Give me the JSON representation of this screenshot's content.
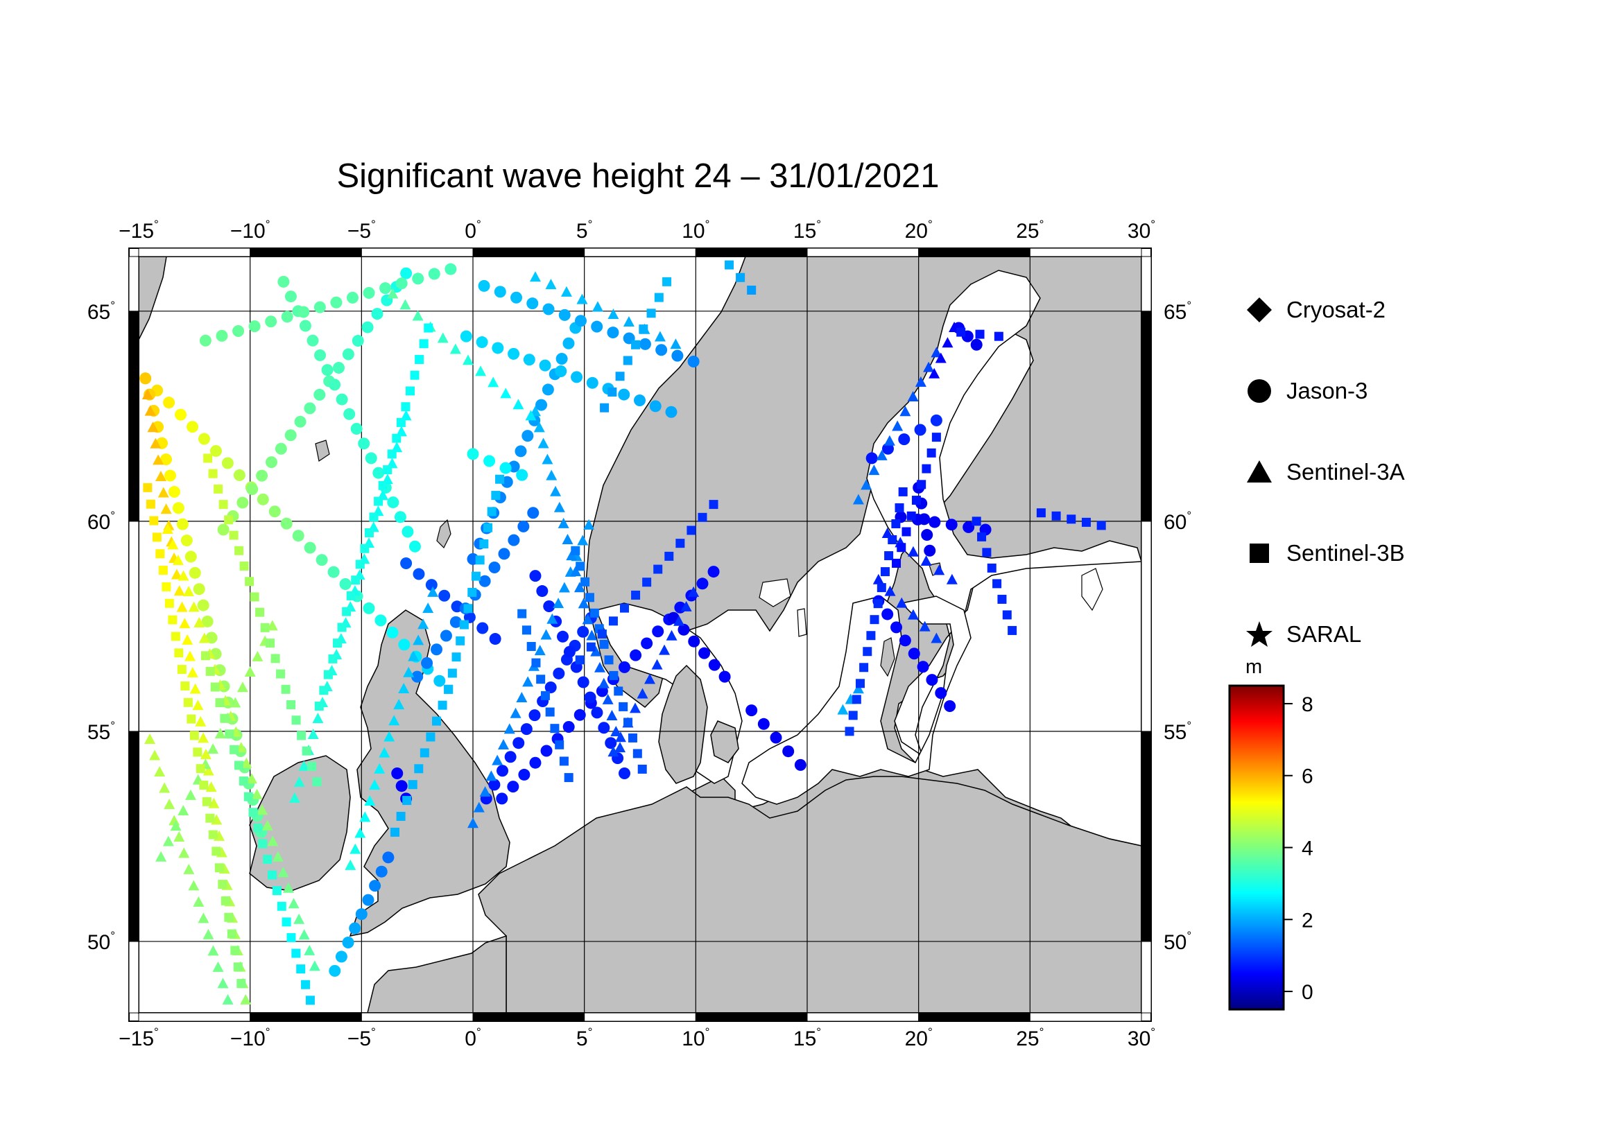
{
  "title": "Significant wave height 24 – 31/01/2021",
  "map": {
    "lon_range": [
      -15,
      30
    ],
    "lat_range": [
      48.3,
      66.3
    ],
    "lon_ticks": [
      -15,
      -10,
      -5,
      0,
      5,
      10,
      15,
      20,
      25,
      30
    ],
    "lon_tick_labels": [
      "−15",
      "−10",
      "−5",
      "0",
      "5",
      "10",
      "15",
      "20",
      "25",
      "30"
    ],
    "lat_ticks": [
      50,
      55,
      60,
      65
    ],
    "lat_tick_labels": [
      "50",
      "55",
      "60",
      "65"
    ],
    "degree_symbol": "°",
    "land_color": "#c0c0c0",
    "sea_color": "#ffffff",
    "gridlines": true
  },
  "legend": {
    "placement": "right",
    "items": [
      {
        "symbol": "diamond",
        "label": "Cryosat-2"
      },
      {
        "symbol": "circle",
        "label": "Jason-3"
      },
      {
        "symbol": "triangle",
        "label": "Sentinel-3A"
      },
      {
        "symbol": "square",
        "label": "Sentinel-3B"
      },
      {
        "symbol": "star",
        "label": "SARAL"
      }
    ]
  },
  "colorbar": {
    "unit": "m",
    "min": -0.5,
    "max": 8.5,
    "ticks": [
      0,
      2,
      4,
      6,
      8
    ],
    "tick_labels": [
      "0",
      "2",
      "4",
      "6",
      "8"
    ],
    "colormap": "jet"
  },
  "chart_data": {
    "type": "scatter",
    "title": "Significant wave height 24 – 31/01/2021",
    "xlabel": "",
    "ylabel": "",
    "xlim": [
      -15,
      30
    ],
    "ylim": [
      48.3,
      66.3
    ],
    "color_value": "significant wave height (m)",
    "series": [
      {
        "name": "Jason-3",
        "marker": "circle",
        "tracks": [
          {
            "from": [
              -14.7,
              63.4
            ],
            "to": [
              -1.5,
              56.2
            ],
            "hs": [
              5.5,
              2.4
            ]
          },
          {
            "from": [
              -14.7,
              63.4
            ],
            "to": [
              -9.5,
              52.6
            ],
            "hs": [
              5.6,
              3.6
            ]
          },
          {
            "from": [
              -11.2,
              59.8
            ],
            "to": [
              -3.0,
              65.9
            ],
            "hs": [
              4.3,
              3.0
            ]
          },
          {
            "from": [
              -8.5,
              65.7
            ],
            "to": [
              -2.6,
              59.4
            ],
            "hs": [
              3.7,
              3.0
            ]
          },
          {
            "from": [
              -12.0,
              64.3
            ],
            "to": [
              -1.0,
              66.0
            ],
            "hs": [
              3.8,
              3.5
            ]
          },
          {
            "from": [
              -3.4,
              54.0
            ],
            "to": [
              -3.0,
              53.4
            ],
            "hs": [
              0.6,
              0.6
            ]
          },
          {
            "from": [
              -6.2,
              49.3
            ],
            "to": [
              -3.8,
              52.0
            ],
            "hs": [
              2.4,
              1.6
            ]
          },
          {
            "from": [
              -3.0,
              59.0
            ],
            "to": [
              1.0,
              57.2
            ],
            "hs": [
              1.4,
              1.0
            ]
          },
          {
            "from": [
              -2.5,
              56.3
            ],
            "to": [
              2.7,
              60.2
            ],
            "hs": [
              1.7,
              1.6
            ]
          },
          {
            "from": [
              0.0,
              59.1
            ],
            "to": [
              4.6,
              64.6
            ],
            "hs": [
              1.6,
              2.3
            ]
          },
          {
            "from": [
              0.0,
              61.6
            ],
            "to": [
              2.2,
              61.1
            ],
            "hs": [
              3.0,
              2.7
            ]
          },
          {
            "from": [
              -0.3,
              64.4
            ],
            "to": [
              8.9,
              62.6
            ],
            "hs": [
              2.6,
              2.1
            ]
          },
          {
            "from": [
              0.5,
              65.6
            ],
            "to": [
              9.9,
              63.8
            ],
            "hs": [
              2.4,
              1.8
            ]
          },
          {
            "from": [
              0.6,
              53.4
            ],
            "to": [
              5.3,
              57.7
            ],
            "hs": [
              0.8,
              1.0
            ]
          },
          {
            "from": [
              1.3,
              53.4
            ],
            "to": [
              10.8,
              58.8
            ],
            "hs": [
              0.8,
              0.7
            ]
          },
          {
            "from": [
              2.8,
              58.7
            ],
            "to": [
              6.8,
              54.0
            ],
            "hs": [
              0.9,
              0.9
            ]
          },
          {
            "from": [
              9.0,
              57.7
            ],
            "to": [
              11.3,
              56.3
            ],
            "hs": [
              0.5,
              0.6
            ]
          },
          {
            "from": [
              12.5,
              55.5
            ],
            "to": [
              14.7,
              54.2
            ],
            "hs": [
              0.6,
              0.5
            ]
          },
          {
            "from": [
              17.9,
              61.5
            ],
            "to": [
              20.8,
              62.4
            ],
            "hs": [
              0.8,
              1.0
            ]
          },
          {
            "from": [
              18.2,
              58.1
            ],
            "to": [
              21.4,
              55.6
            ],
            "hs": [
              0.7,
              0.6
            ]
          },
          {
            "from": [
              19.2,
              60.1
            ],
            "to": [
              23.0,
              59.8
            ],
            "hs": [
              0.5,
              0.6
            ]
          },
          {
            "from": [
              20.0,
              60.8
            ],
            "to": [
              20.5,
              59.3
            ],
            "hs": [
              0.5,
              0.5
            ]
          },
          {
            "from": [
              21.8,
              64.6
            ],
            "to": [
              22.6,
              64.2
            ],
            "hs": [
              0.6,
              0.5
            ]
          }
        ]
      },
      {
        "name": "Sentinel-3A",
        "marker": "triangle",
        "tracks": [
          {
            "from": [
              -14.6,
              63.0
            ],
            "to": [
              -10.2,
              48.6
            ],
            "hs": [
              5.8,
              4.2
            ]
          },
          {
            "from": [
              -14.5,
              54.8
            ],
            "to": [
              -11.0,
              48.6
            ],
            "hs": [
              4.6,
              3.8
            ]
          },
          {
            "from": [
              -13.7,
              59.8
            ],
            "to": [
              -7.1,
              49.4
            ],
            "hs": [
              5.2,
              3.6
            ]
          },
          {
            "from": [
              -14.0,
              52.0
            ],
            "to": [
              -9.0,
              57.5
            ],
            "hs": [
              4.0,
              4.3
            ]
          },
          {
            "from": [
              -8.0,
              53.4
            ],
            "to": [
              -3.0,
              62.5
            ],
            "hs": [
              3.2,
              2.9
            ]
          },
          {
            "from": [
              -5.5,
              51.8
            ],
            "to": [
              -1.8,
              58.3
            ],
            "hs": [
              3.1,
              2.1
            ]
          },
          {
            "from": [
              0.0,
              52.8
            ],
            "to": [
              5.2,
              59.9
            ],
            "hs": [
              1.7,
              2.0
            ]
          },
          {
            "from": [
              2.8,
              62.6
            ],
            "to": [
              6.6,
              54.6
            ],
            "hs": [
              2.3,
              1.2
            ]
          },
          {
            "from": [
              6.3,
              54.5
            ],
            "to": [
              9.9,
              58.3
            ],
            "hs": [
              1.2,
              1.0
            ]
          },
          {
            "from": [
              2.8,
              65.8
            ],
            "to": [
              9.1,
              64.2
            ],
            "hs": [
              2.4,
              2.1
            ]
          },
          {
            "from": [
              -3.6,
              65.4
            ],
            "to": [
              2.6,
              62.5
            ],
            "hs": [
              3.7,
              2.7
            ]
          },
          {
            "from": [
              16.6,
              55.5
            ],
            "to": [
              17.3,
              56.0
            ],
            "hs": [
              2.2,
              2.0
            ]
          },
          {
            "from": [
              17.3,
              60.5
            ],
            "to": [
              20.8,
              64.0
            ],
            "hs": [
              1.7,
              1.2
            ]
          },
          {
            "from": [
              18.2,
              58.6
            ],
            "to": [
              20.8,
              57.2
            ],
            "hs": [
              0.9,
              1.2
            ]
          },
          {
            "from": [
              18.6,
              59.7
            ],
            "to": [
              21.5,
              58.6
            ],
            "hs": [
              0.9,
              1.0
            ]
          },
          {
            "from": [
              20.7,
              63.5
            ],
            "to": [
              21.6,
              64.6
            ],
            "hs": [
              0.6,
              0.6
            ]
          }
        ]
      },
      {
        "name": "Sentinel-3B",
        "marker": "square",
        "tracks": [
          {
            "from": [
              -14.6,
              60.8
            ],
            "to": [
              -10.4,
              49.0
            ],
            "hs": [
              5.4,
              4.0
            ]
          },
          {
            "from": [
              -12.0,
              56.8
            ],
            "to": [
              -7.3,
              48.6
            ],
            "hs": [
              4.4,
              2.5
            ]
          },
          {
            "from": [
              -11.9,
              61.5
            ],
            "to": [
              -7.0,
              53.8
            ],
            "hs": [
              4.8,
              3.6
            ]
          },
          {
            "from": [
              -6.9,
              55.6
            ],
            "to": [
              -2.0,
              64.6
            ],
            "hs": [
              3.2,
              2.9
            ]
          },
          {
            "from": [
              -3.5,
              52.6
            ],
            "to": [
              -1.1,
              56.0
            ],
            "hs": [
              2.2,
              2.3
            ]
          },
          {
            "from": [
              -1.1,
              56.0
            ],
            "to": [
              1.2,
              61.0
            ],
            "hs": [
              2.3,
              2.3
            ]
          },
          {
            "from": [
              2.2,
              57.8
            ],
            "to": [
              4.3,
              53.9
            ],
            "hs": [
              1.6,
              1.4
            ]
          },
          {
            "from": [
              4.6,
              59.3
            ],
            "to": [
              7.6,
              54.1
            ],
            "hs": [
              1.7,
              1.3
            ]
          },
          {
            "from": [
              5.9,
              62.7
            ],
            "to": [
              8.7,
              65.7
            ],
            "hs": [
              2.0,
              2.3
            ]
          },
          {
            "from": [
              4.8,
              56.7
            ],
            "to": [
              10.8,
              60.4
            ],
            "hs": [
              1.2,
              1.0
            ]
          },
          {
            "from": [
              16.9,
              55.0
            ],
            "to": [
              19.3,
              60.7
            ],
            "hs": [
              1.1,
              0.9
            ]
          },
          {
            "from": [
              19.0,
              59.0
            ],
            "to": [
              20.8,
              62.0
            ],
            "hs": [
              0.7,
              0.9
            ]
          },
          {
            "from": [
              21.9,
              64.5
            ],
            "to": [
              23.6,
              64.4
            ],
            "hs": [
              0.8,
              0.8
            ]
          },
          {
            "from": [
              22.6,
              60.0
            ],
            "to": [
              24.2,
              57.4
            ],
            "hs": [
              0.9,
              1.0
            ]
          },
          {
            "from": [
              25.5,
              60.2
            ],
            "to": [
              28.2,
              59.9
            ],
            "hs": [
              0.9,
              1.0
            ]
          },
          {
            "from": [
              11.5,
              66.1
            ],
            "to": [
              12.5,
              65.5
            ],
            "hs": [
              2.2,
              2.0
            ]
          }
        ]
      },
      {
        "name": "Cryosat-2",
        "marker": "diamond",
        "tracks": []
      },
      {
        "name": "SARAL",
        "marker": "star",
        "tracks": []
      }
    ]
  }
}
